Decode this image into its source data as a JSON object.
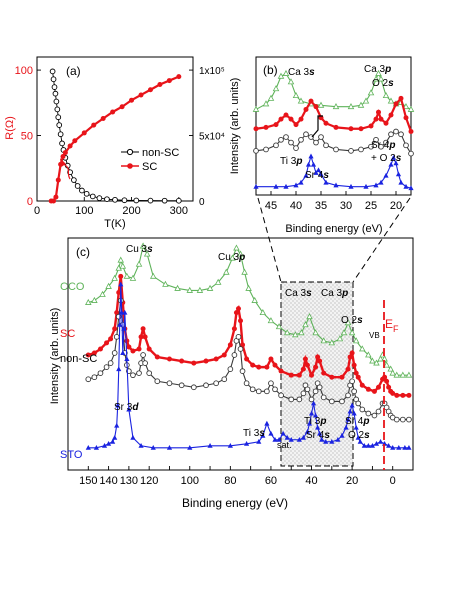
{
  "chart_data": [
    {
      "panel": "(a)",
      "type": "line",
      "xlabel": "T(K)",
      "ylabel": "R(Ω)",
      "y2label": "",
      "xlim": [
        0,
        330
      ],
      "ylim": [
        0,
        110
      ],
      "y2lim": [
        0,
        110000
      ],
      "xticks": [
        "0",
        "100",
        "200",
        "300"
      ],
      "yticks": [
        "0",
        "50",
        "100"
      ],
      "y2ticks": [
        "0",
        "5x10⁴",
        "1x10⁵"
      ],
      "legend_position": "center-right",
      "legend": [
        "non-SC",
        "SC"
      ],
      "colors": {
        "non_SC": "#000000",
        "SC": "#e8141a"
      },
      "series": [
        {
          "name": "non-SC",
          "axis": "right",
          "x": [
            33,
            35,
            37,
            39,
            41,
            43,
            45,
            47,
            50,
            53,
            56,
            60,
            65,
            70,
            78,
            86,
            95,
            105,
            118,
            132,
            148,
            165,
            185,
            210,
            240,
            270,
            300
          ],
          "y": [
            99000,
            93000,
            87000,
            82000,
            76000,
            70000,
            64000,
            58000,
            51000,
            44000,
            39000,
            33000,
            27000,
            22000,
            16000,
            11500,
            8000,
            5500,
            3500,
            2200,
            1400,
            900,
            600,
            400,
            300,
            250,
            200
          ]
        },
        {
          "name": "SC",
          "axis": "left",
          "x": [
            30,
            35,
            40,
            45,
            50,
            55,
            60,
            70,
            80,
            100,
            120,
            140,
            160,
            180,
            200,
            220,
            240,
            260,
            280,
            300
          ],
          "y": [
            0,
            0,
            3,
            16,
            28,
            34,
            37,
            42,
            46,
            52,
            58,
            63,
            68,
            72,
            77,
            81,
            85,
            89,
            92,
            95
          ]
        }
      ]
    },
    {
      "panel": "(b)",
      "type": "line",
      "xlabel": "Binding energy (eV)",
      "ylabel": "Intensity (arb. units)",
      "xlim": [
        48,
        17
      ],
      "x_reversed": true,
      "xticks": [
        "45",
        "40",
        "35",
        "30",
        "25",
        "20"
      ],
      "annotations": [
        "Ca 3𝒔",
        "Ca 3𝒑",
        "O 2𝒔",
        "Sr 4𝒑",
        "+ O 2𝒔",
        "Ti 3𝒑",
        "Sr 4𝒔"
      ],
      "series": [
        {
          "name": "CCO",
          "color": "#5fb35a",
          "x": [
            48,
            46,
            45,
            44,
            43,
            42,
            41,
            40,
            39,
            37,
            35,
            32,
            29,
            27,
            26,
            25,
            24,
            23.5,
            23,
            22,
            21,
            20,
            19,
            18,
            17
          ],
          "y": [
            0.62,
            0.66,
            0.7,
            0.77,
            0.86,
            0.88,
            0.82,
            0.72,
            0.68,
            0.66,
            0.65,
            0.64,
            0.64,
            0.65,
            0.68,
            0.74,
            0.84,
            0.88,
            0.84,
            0.72,
            0.68,
            0.66,
            0.67,
            0.64,
            0.62
          ]
        },
        {
          "name": "SC",
          "color": "#e8141a",
          "x": [
            48,
            46,
            44,
            43,
            42,
            41,
            40,
            39,
            38,
            37,
            36,
            35,
            34,
            32,
            29,
            27,
            25,
            24,
            23.5,
            23,
            22,
            21,
            20,
            19,
            18,
            17
          ],
          "y": [
            0.48,
            0.49,
            0.51,
            0.55,
            0.58,
            0.55,
            0.51,
            0.55,
            0.62,
            0.68,
            0.64,
            0.56,
            0.52,
            0.49,
            0.48,
            0.48,
            0.5,
            0.55,
            0.6,
            0.55,
            0.52,
            0.58,
            0.66,
            0.7,
            0.56,
            0.46
          ]
        },
        {
          "name": "non-SC",
          "color": "#3a3a3a",
          "x": [
            48,
            46,
            44,
            43,
            42,
            41,
            40,
            39,
            38,
            37,
            36,
            35,
            34,
            32,
            29,
            27,
            25,
            24,
            23,
            22,
            21,
            20,
            19,
            18,
            17
          ],
          "y": [
            0.32,
            0.33,
            0.36,
            0.4,
            0.42,
            0.38,
            0.34,
            0.4,
            0.44,
            0.42,
            0.38,
            0.42,
            0.36,
            0.33,
            0.32,
            0.33,
            0.35,
            0.4,
            0.35,
            0.38,
            0.44,
            0.46,
            0.44,
            0.36,
            0.3
          ]
        },
        {
          "name": "STO",
          "color": "#1a23e0",
          "x": [
            48,
            44,
            42,
            40,
            39,
            38,
            37.5,
            37,
            36.5,
            36,
            35.5,
            35,
            34,
            32,
            29,
            26,
            24,
            23,
            22,
            21,
            20.5,
            20,
            19.5,
            19,
            18,
            17
          ],
          "y": [
            0.06,
            0.06,
            0.06,
            0.07,
            0.09,
            0.14,
            0.22,
            0.28,
            0.22,
            0.16,
            0.18,
            0.15,
            0.09,
            0.07,
            0.06,
            0.06,
            0.07,
            0.09,
            0.14,
            0.22,
            0.27,
            0.23,
            0.15,
            0.09,
            0.06,
            0.05
          ]
        }
      ]
    },
    {
      "panel": "(c)",
      "type": "line",
      "xlabel": "Binding energy (eV)",
      "ylabel": "Intensity (arb. units)",
      "xlim": [
        160,
        -10
      ],
      "x_reversed": true,
      "xticks": [
        "150",
        "140",
        "130",
        "120",
        "110",
        "100",
        "90",
        "80",
        "70",
        "60",
        "50",
        "40",
        "30",
        "20",
        "10",
        "0"
      ],
      "highlight_range": [
        52,
        16
      ],
      "fermi_level_x": 0,
      "annotations": [
        "Cu 3𝒔",
        "Cu 3𝒑",
        "Ca 3𝒔",
        "Ca 3𝒑",
        "O 2𝒔",
        "VB",
        "E",
        "F",
        "Sr 3𝒅",
        "Ti 3𝒔",
        "sat.",
        "Ti 3𝒑",
        "Sr 4𝒔",
        "Sr 4𝒑",
        "O 2𝒔"
      ],
      "series": [
        {
          "name": "CCO",
          "color": "#5fb35a",
          "x": [
            150,
            147,
            143,
            140,
            137,
            135,
            134,
            133,
            131,
            128,
            125,
            123,
            121,
            118,
            112,
            106,
            100,
            95,
            90,
            86,
            82,
            79,
            77,
            75,
            73,
            71,
            68,
            64,
            60,
            56,
            52,
            48,
            45,
            43,
            41,
            38,
            34,
            30,
            26,
            24,
            22,
            20,
            18,
            15,
            12,
            10,
            8,
            6,
            5,
            4,
            3,
            1,
            0,
            -2,
            -5,
            -8
          ],
          "y": [
            0.83,
            0.84,
            0.87,
            0.91,
            0.95,
            1.0,
            1.04,
            1.01,
            0.96,
            0.95,
            1.02,
            1.11,
            1.07,
            0.96,
            0.92,
            0.9,
            0.89,
            0.89,
            0.9,
            0.93,
            0.98,
            1.05,
            1.1,
            1.07,
            0.98,
            0.9,
            0.84,
            0.78,
            0.74,
            0.71,
            0.68,
            0.67,
            0.68,
            0.72,
            0.76,
            0.68,
            0.64,
            0.63,
            0.65,
            0.68,
            0.73,
            0.68,
            0.64,
            0.6,
            0.57,
            0.54,
            0.53,
            0.55,
            0.57,
            0.55,
            0.52,
            0.5,
            0.48,
            0.47,
            0.47,
            0.47
          ]
        },
        {
          "name": "SC",
          "color": "#e8141a",
          "x": [
            150,
            147,
            144,
            141,
            139,
            137,
            136,
            135,
            134,
            133,
            132,
            131,
            130,
            128,
            125,
            124,
            123,
            122,
            120,
            116,
            110,
            104,
            98,
            92,
            87,
            83,
            80,
            78,
            77,
            76,
            75,
            74,
            72,
            69,
            66,
            62,
            60,
            58,
            55,
            50,
            46,
            44,
            43,
            42,
            40,
            38,
            37,
            36,
            34,
            30,
            25,
            22,
            21,
            20,
            19,
            18,
            17,
            15,
            12,
            9,
            7,
            5,
            4,
            3,
            2,
            1,
            0,
            -2,
            -5,
            -8
          ],
          "y": [
            0.57,
            0.58,
            0.6,
            0.63,
            0.65,
            0.7,
            0.78,
            0.88,
            0.96,
            0.83,
            0.7,
            0.64,
            0.61,
            0.59,
            0.6,
            0.66,
            0.7,
            0.66,
            0.6,
            0.56,
            0.55,
            0.54,
            0.53,
            0.54,
            0.55,
            0.57,
            0.62,
            0.7,
            0.78,
            0.8,
            0.74,
            0.62,
            0.55,
            0.52,
            0.51,
            0.51,
            0.55,
            0.52,
            0.49,
            0.47,
            0.47,
            0.5,
            0.55,
            0.52,
            0.47,
            0.51,
            0.56,
            0.54,
            0.48,
            0.46,
            0.46,
            0.5,
            0.56,
            0.58,
            0.52,
            0.48,
            0.46,
            0.42,
            0.4,
            0.39,
            0.41,
            0.45,
            0.46,
            0.44,
            0.41,
            0.39,
            0.38,
            0.37,
            0.37,
            0.37
          ]
        },
        {
          "name": "non-SC",
          "color": "#3a3a3a",
          "x": [
            150,
            147,
            144,
            141,
            139,
            137,
            136,
            135,
            134,
            133,
            132,
            131,
            130,
            128,
            125,
            124,
            123,
            122,
            120,
            116,
            110,
            104,
            98,
            92,
            87,
            83,
            80,
            78,
            77,
            76,
            75,
            74,
            72,
            69,
            66,
            62,
            60,
            58,
            55,
            50,
            46,
            44,
            43,
            42,
            40,
            38,
            37,
            36,
            34,
            30,
            25,
            22,
            21,
            20,
            19,
            18,
            17,
            15,
            12,
            9,
            7,
            5,
            4,
            3,
            2,
            1,
            0,
            -2,
            -5,
            -8
          ],
          "y": [
            0.45,
            0.46,
            0.48,
            0.51,
            0.53,
            0.58,
            0.66,
            0.76,
            0.84,
            0.72,
            0.58,
            0.52,
            0.49,
            0.47,
            0.48,
            0.53,
            0.57,
            0.53,
            0.48,
            0.44,
            0.43,
            0.42,
            0.41,
            0.42,
            0.43,
            0.45,
            0.5,
            0.57,
            0.64,
            0.66,
            0.6,
            0.49,
            0.43,
            0.4,
            0.39,
            0.39,
            0.43,
            0.4,
            0.37,
            0.35,
            0.35,
            0.38,
            0.42,
            0.4,
            0.35,
            0.39,
            0.43,
            0.41,
            0.36,
            0.34,
            0.34,
            0.37,
            0.42,
            0.44,
            0.39,
            0.35,
            0.33,
            0.3,
            0.28,
            0.27,
            0.29,
            0.33,
            0.33,
            0.31,
            0.29,
            0.27,
            0.26,
            0.25,
            0.25,
            0.25
          ]
        },
        {
          "name": "STO",
          "color": "#1a23e0",
          "x": [
            150,
            146,
            142,
            140,
            138,
            137,
            136,
            135.5,
            135,
            134.5,
            134,
            133.5,
            133,
            132.5,
            132,
            131,
            130,
            128,
            124,
            118,
            110,
            100,
            90,
            80,
            72,
            66,
            64,
            62,
            60,
            58,
            56,
            54,
            52,
            50,
            46,
            44,
            42,
            41,
            40,
            39,
            38,
            37,
            36,
            35,
            33,
            30,
            27,
            25,
            23,
            22,
            21,
            20,
            19,
            18,
            17,
            16,
            14,
            12,
            10,
            8,
            6,
            4,
            2,
            0,
            -3,
            -6,
            -8
          ],
          "y": [
            0.11,
            0.11,
            0.12,
            0.13,
            0.14,
            0.16,
            0.22,
            0.32,
            0.5,
            0.72,
            0.92,
            0.78,
            0.58,
            0.7,
            0.78,
            0.55,
            0.3,
            0.16,
            0.12,
            0.11,
            0.11,
            0.11,
            0.12,
            0.12,
            0.13,
            0.14,
            0.17,
            0.23,
            0.18,
            0.15,
            0.15,
            0.18,
            0.16,
            0.15,
            0.15,
            0.16,
            0.19,
            0.23,
            0.28,
            0.33,
            0.27,
            0.21,
            0.18,
            0.15,
            0.14,
            0.14,
            0.15,
            0.17,
            0.21,
            0.25,
            0.29,
            0.32,
            0.28,
            0.21,
            0.16,
            0.14,
            0.12,
            0.12,
            0.12,
            0.13,
            0.14,
            0.13,
            0.12,
            0.11,
            0.11,
            0.11,
            0.11
          ]
        }
      ]
    }
  ],
  "panel_a": {
    "label": "(a)",
    "legend_nonsc": "non-SC",
    "legend_sc": "SC"
  },
  "panel_b": {
    "label": "(b)",
    "ca3s": "Ca 3",
    "ca3p": "Ca 3",
    "o2s": "O 2",
    "sr4p": "Sr 4",
    "plus_o2s": "+ O 2",
    "ti3p": "Ti 3",
    "sr4s": "Sr 4"
  },
  "panel_c": {
    "label": "(c)",
    "cu3s": "Cu 3",
    "cu3p": "Cu 3",
    "ca3s": "Ca 3",
    "ca3p": "Ca 3",
    "o2s_top": "O 2",
    "vb": "VB",
    "ef_e": "E",
    "ef_f": "F",
    "sr3d": "Sr 3",
    "ti3s": "Ti 3",
    "sat": "sat.",
    "ti3p": "Ti 3",
    "sr4s": "Sr 4",
    "sr4p": "Sr 4",
    "o2s_bot": "O 2",
    "label_cco": "CCO",
    "label_sc": "SC",
    "label_nonsc": "non-SC",
    "label_sto": "STO"
  }
}
